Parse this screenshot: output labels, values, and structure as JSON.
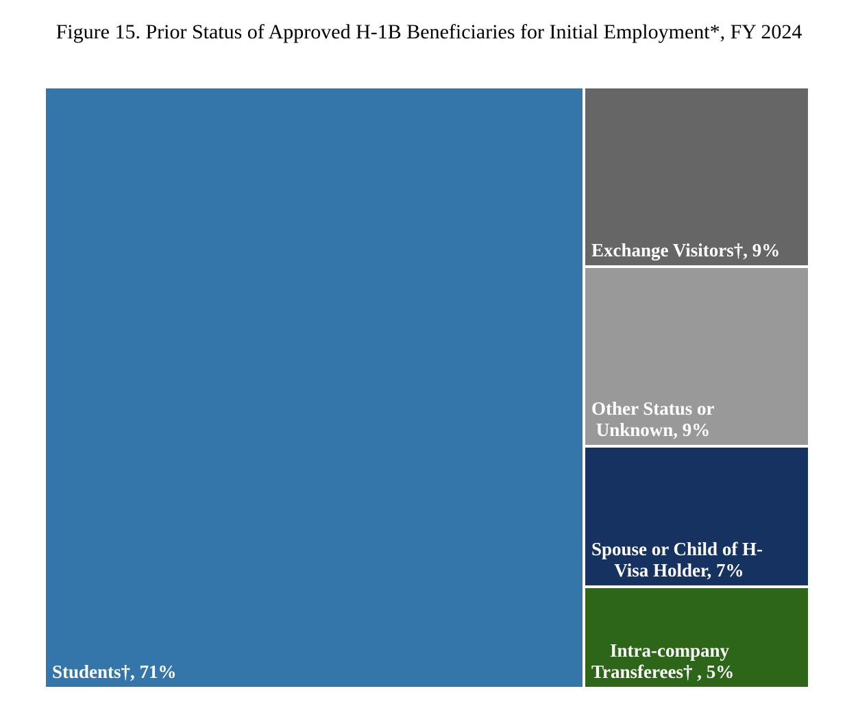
{
  "chart_data": {
    "type": "treemap",
    "title": "Figure 15. Prior Status of Approved H-1B Beneficiaries for Initial Employment*, FY 2024",
    "items": [
      {
        "id": "students",
        "label_lines": [
          "Students†, 71%"
        ],
        "category": "Students†",
        "value": 71,
        "color": "#3476A9"
      },
      {
        "id": "exchange-visitors",
        "label_lines": [
          "Exchange Visitors†, 9%"
        ],
        "category": "Exchange Visitors†",
        "value": 9,
        "color": "#666666"
      },
      {
        "id": "other-status",
        "label_lines": [
          "Other Status or",
          " Unknown, 9%"
        ],
        "category": "Other Status or Unknown",
        "value": 9,
        "color": "#999999"
      },
      {
        "id": "spouse-child",
        "label_lines": [
          "Spouse or Child of H-",
          "     Visa Holder, 7%"
        ],
        "category": "Spouse or Child of H-Visa Holder",
        "value": 7,
        "color": "#153261"
      },
      {
        "id": "intra-company",
        "label_lines": [
          "    Intra-company",
          "Transferees† , 5%"
        ],
        "category": "Intra-company Transferees†",
        "value": 5,
        "color": "#2D6519"
      }
    ]
  }
}
